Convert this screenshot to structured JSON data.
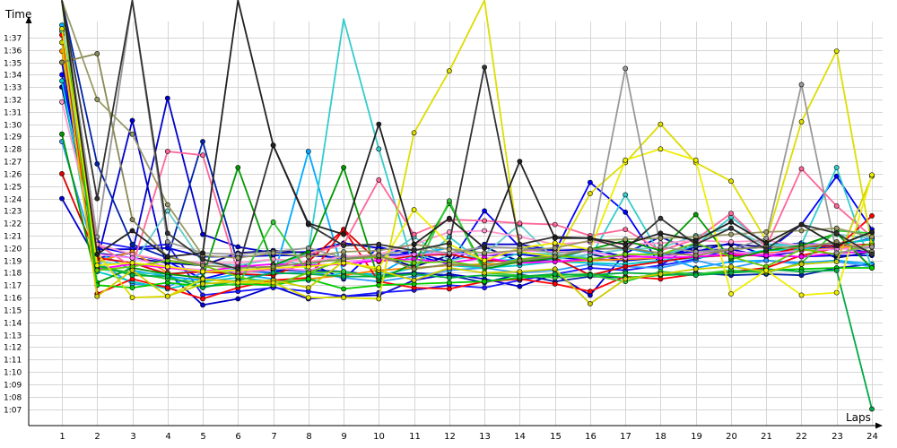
{
  "chart_data": {
    "type": "line",
    "xlabel": "Laps",
    "ylabel": "Time",
    "x": [
      1,
      2,
      3,
      4,
      5,
      6,
      7,
      8,
      9,
      10,
      11,
      12,
      13,
      14,
      15,
      16,
      17,
      18,
      19,
      20,
      21,
      22,
      23,
      24
    ],
    "ylim_seconds": [
      66,
      98
    ],
    "y_tick_labels": [
      "1:07",
      "1:08",
      "1:09",
      "1:10",
      "1:11",
      "1:12",
      "1:13",
      "1:14",
      "1:15",
      "1:16",
      "1:17",
      "1:18",
      "1:19",
      "1:20",
      "1:21",
      "1:22",
      "1:23",
      "1:24",
      "1:25",
      "1:26",
      "1:27",
      "1:28",
      "1:29",
      "1:30",
      "1:31",
      "1:32",
      "1:33",
      "1:34",
      "1:35",
      "1:36",
      "1:37"
    ],
    "y_tick_values": [
      67,
      68,
      69,
      70,
      71,
      72,
      73,
      74,
      75,
      76,
      77,
      78,
      79,
      80,
      81,
      82,
      83,
      84,
      85,
      86,
      87,
      88,
      89,
      90,
      91,
      92,
      93,
      94,
      95,
      96,
      97
    ],
    "grid": true,
    "series": [
      {
        "color": "#0000cc",
        "values": [
          84.0,
          79.0,
          90.3,
          78.0,
          75.4,
          75.9,
          76.9,
          75.9,
          76.1,
          76.2,
          77.4,
          77.9,
          77.5,
          76.9,
          77.9,
          76.2,
          79.6,
          80.9,
          79.7,
          79.6,
          79.3,
          79.8,
          80.1,
          79.6
        ]
      },
      {
        "color": "#0000cc",
        "values": [
          95.0,
          79.2,
          79.6,
          92.1,
          81.1,
          80.1,
          79.6,
          79.7,
          80.4,
          80.0,
          79.6,
          78.9,
          80.3,
          80.3,
          79.8,
          79.9,
          79.3,
          79.3,
          79.8,
          79.9,
          79.3,
          79.8,
          80.3,
          80.7
        ]
      },
      {
        "color": "#00008b",
        "values": [
          93.0,
          79.6,
          79.2,
          78.8,
          78.6,
          79.6,
          79.8,
          79.6,
          79.1,
          79.4,
          78.5,
          79.4,
          80.1,
          78.9,
          79.1,
          79.5,
          79.0,
          79.2,
          80.1,
          80.3,
          80.1,
          80.4,
          79.2,
          79.7
        ]
      },
      {
        "color": "#0000ff",
        "values": [
          94.0,
          80.1,
          79.5,
          78.9,
          77.5,
          78.2,
          78.0,
          78.8,
          77.5,
          80.1,
          79.4,
          78.7,
          83.0,
          80.1,
          79.7,
          85.3,
          82.9,
          78.6,
          80.4,
          79.3,
          79.7,
          81.9,
          85.8,
          81.5
        ]
      },
      {
        "color": "#0000dd",
        "values": [
          100.0,
          79.9,
          79.9,
          80.0,
          79.3,
          79.3,
          79.4,
          79.4,
          79.2,
          79.4,
          79.5,
          79.6,
          79.4,
          79.5,
          79.2,
          79.1,
          79.0,
          79.3,
          79.7,
          80.4,
          79.4,
          79.3,
          79.4,
          79.4
        ]
      },
      {
        "color": "#1a1aff",
        "values": [
          100.0,
          80.5,
          80.0,
          80.3,
          76.2,
          76.5,
          76.8,
          76.5,
          76.1,
          76.4,
          76.6,
          77.0,
          76.8,
          77.4,
          77.9,
          78.4,
          78.2,
          78.6,
          79.1,
          79.9,
          80.1,
          80.4,
          80.2,
          80.8
        ]
      },
      {
        "color": "#0022aa",
        "values": [
          100.0,
          86.8,
          80.3,
          79.2,
          88.6,
          78.7,
          78.2,
          78.2,
          78.1,
          77.8,
          78.0,
          77.8,
          77.2,
          77.9,
          77.3,
          77.7,
          77.6,
          77.8,
          78.0,
          77.8,
          77.9,
          77.8,
          78.4,
          78.7
        ]
      },
      {
        "color": "#00aaff",
        "values": [
          98.0,
          79.7,
          78.2,
          77.7,
          77.4,
          77.9,
          77.5,
          87.8,
          77.9,
          77.9,
          79.5,
          80.0,
          78.9,
          79.1,
          79.1,
          79.9,
          80.0,
          79.4,
          78.4,
          78.9,
          79.0,
          78.8,
          79.0,
          78.7
        ]
      },
      {
        "color": "#3399ff",
        "values": [
          88.6,
          78.9,
          77.1,
          76.9,
          78.0,
          78.3,
          77.9,
          78.1,
          77.6,
          77.3,
          77.7,
          78.2,
          78.4,
          78.0,
          78.2,
          78.7,
          78.5,
          78.4,
          79.0,
          78.4,
          79.0,
          78.7,
          78.9,
          78.5
        ]
      },
      {
        "color": "#33cccc",
        "values": [
          97.5,
          78.3,
          78.0,
          77.9,
          78.2,
          77.9,
          78.5,
          79.6,
          98.5,
          88.0,
          78.4,
          80.9,
          78.7,
          79.6,
          79.5,
          79.2,
          84.3,
          79.4,
          80.2,
          82.5,
          80.3,
          80.3,
          86.5,
          78.4
        ]
      },
      {
        "color": "#66cccc",
        "values": [
          100.0,
          78.9,
          78.6,
          83.0,
          78.8,
          78.6,
          79.1,
          78.6,
          79.4,
          79.0,
          80.9,
          79.0,
          79.5,
          81.9,
          79.1,
          79.5,
          79.9,
          80.0,
          81.0,
          81.6,
          80.2,
          80.2,
          81.1,
          80.8
        ]
      },
      {
        "color": "#00cccc",
        "values": [
          93.5,
          78.1,
          77.3,
          76.7,
          77.3,
          77.6,
          77.3,
          77.4,
          78.0,
          77.8,
          78.4,
          78.6,
          78.4,
          78.6,
          78.9,
          78.8,
          78.7,
          79.0,
          79.2,
          79.5,
          79.8,
          79.9,
          80.3,
          80.7
        ]
      },
      {
        "color": "#ff8c00",
        "values": [
          95.9,
          78.9,
          79.7,
          78.0,
          77.5,
          77.3,
          77.1,
          77.5,
          77.8,
          78.2,
          78.4,
          78.6,
          78.7,
          78.8,
          78.9,
          79.0,
          79.1,
          79.2,
          79.3,
          79.5,
          79.6,
          79.8,
          80.0,
          80.2
        ]
      },
      {
        "color": "#ff0000",
        "values": [
          97.2,
          76.3,
          77.5,
          76.8,
          75.9,
          76.8,
          77.4,
          77.6,
          81.5,
          77.3,
          76.8,
          76.7,
          77.3,
          77.5,
          77.1,
          76.5,
          77.7,
          77.5,
          77.9,
          78.1,
          78.4,
          79.4,
          80.0,
          82.6
        ]
      },
      {
        "color": "#dd0000",
        "values": [
          86.0,
          79.2,
          78.8,
          77.9,
          78.1,
          77.9,
          77.8,
          78.9,
          81.5,
          78.9,
          79.4,
          79.5,
          79.0,
          78.9,
          79.2,
          77.8,
          78.5,
          78.9,
          79.3,
          79.4,
          79.4,
          80.1,
          80.2,
          80.3
        ]
      },
      {
        "color": "#ff6699",
        "values": [
          100.0,
          80.3,
          78.5,
          87.8,
          87.5,
          78.0,
          78.3,
          79.5,
          80.3,
          85.5,
          81.1,
          82.3,
          82.2,
          82.0,
          81.9,
          81.0,
          81.5,
          79.8,
          80.7,
          82.8,
          80.1,
          86.4,
          83.4,
          80.9
        ]
      },
      {
        "color": "#ff99cc",
        "values": [
          91.8,
          80.3,
          79.5,
          79.0,
          78.8,
          78.8,
          79.1,
          78.9,
          79.3,
          79.5,
          80.3,
          81.3,
          81.4,
          80.9,
          80.3,
          80.5,
          80.3,
          80.4,
          80.6,
          80.5,
          80.6,
          80.2,
          80.4,
          80.1
        ]
      },
      {
        "color": "#ff80ff",
        "values": [
          100.0,
          79.5,
          79.2,
          78.5,
          78.2,
          78.1,
          78.4,
          78.2,
          78.9,
          79.1,
          79.5,
          79.6,
          79.4,
          79.8,
          79.7,
          79.7,
          79.2,
          79.3,
          79.6,
          79.7,
          79.5,
          79.8,
          79.9,
          80.1
        ]
      },
      {
        "color": "#ff00ff",
        "values": [
          100.0,
          78.3,
          78.7,
          78.4,
          78.1,
          78.5,
          78.7,
          78.6,
          78.7,
          79.0,
          79.1,
          78.8,
          79.2,
          78.8,
          78.9,
          79.1,
          79.4,
          79.2,
          79.3,
          79.5,
          79.4,
          79.3,
          79.6,
          79.7
        ]
      },
      {
        "color": "#009900",
        "values": [
          89.2,
          77.2,
          78.4,
          77.9,
          77.6,
          86.5,
          78.6,
          79.7,
          86.5,
          77.4,
          78.8,
          83.6,
          78.3,
          78.9,
          79.2,
          79.9,
          80.6,
          79.8,
          82.7,
          79.1,
          79.8,
          80.2,
          81.2,
          78.4
        ]
      },
      {
        "color": "#00cc00",
        "values": [
          100.0,
          77.0,
          76.8,
          77.2,
          76.9,
          77.1,
          77.0,
          77.5,
          76.7,
          77.0,
          77.1,
          77.2,
          77.3,
          77.6,
          77.8,
          77.9,
          77.6,
          77.8,
          77.9,
          78.0,
          78.2,
          78.3,
          78.4,
          78.4
        ]
      },
      {
        "color": "#33cc33",
        "values": [
          100.0,
          78.5,
          78.0,
          77.5,
          77.2,
          77.0,
          82.1,
          78.0,
          78.1,
          77.6,
          77.9,
          83.8,
          78.0,
          77.8,
          77.6,
          77.8,
          77.3,
          78.1,
          77.9,
          78.2,
          78.0,
          78.8,
          81.4,
          81.2
        ]
      },
      {
        "color": "#00aa44",
        "values": [
          100.0,
          78.6,
          77.8,
          77.7,
          76.8,
          77.4,
          78.0,
          77.9,
          77.7,
          77.7,
          77.9,
          77.6,
          77.8,
          77.7,
          77.9,
          77.8,
          78.0,
          77.9,
          77.8,
          78.0,
          78.3,
          78.1,
          78.2,
          67.0
        ]
      },
      {
        "color": "#66cc00",
        "values": [
          100.0,
          78.2,
          78.5,
          79.0,
          78.6,
          77.7,
          77.0,
          78.0,
          79.1,
          79.3,
          78.8,
          78.9,
          78.5,
          79.1,
          79.4,
          79.1,
          79.5,
          79.5,
          80.4,
          79.3,
          78.5,
          79.9,
          79.5,
          80.4
        ]
      },
      {
        "color": "#cccc00",
        "values": [
          96.6,
          76.1,
          78.2,
          76.1,
          77.1,
          77.3,
          77.4,
          76.8,
          78.9,
          78.2,
          77.4,
          78.4,
          78.0,
          78.1,
          78.3,
          75.5,
          77.5,
          77.9,
          78.3,
          78.5,
          78.1,
          78.7,
          78.9,
          85.8
        ]
      },
      {
        "color": "#dddd00",
        "values": [
          97.7,
          79.6,
          76.0,
          76.1,
          77.5,
          77.2,
          77.2,
          76.0,
          76.0,
          75.9,
          89.3,
          94.3,
          100.0,
          79.7,
          79.3,
          84.4,
          86.9,
          90.0,
          86.9,
          85.4,
          80.6,
          90.2,
          95.9,
          80.2
        ]
      },
      {
        "color": "#eeee00",
        "values": [
          100.0,
          78.6,
          78.8,
          78.5,
          78.1,
          78.2,
          78.4,
          78.5,
          78.8,
          78.4,
          83.1,
          80.3,
          79.0,
          80.0,
          80.4,
          79.9,
          87.1,
          88.0,
          87.1,
          76.3,
          78.2,
          76.2,
          76.4,
          85.9
        ]
      },
      {
        "color": "#999999",
        "values": [
          100.0,
          80.9,
          100.0,
          80.5,
          79.6,
          79.5,
          79.7,
          80.0,
          79.2,
          79.4,
          79.9,
          79.6,
          80.1,
          80.0,
          79.6,
          79.8,
          94.5,
          80.1,
          79.7,
          79.9,
          80.8,
          93.2,
          79.6,
          80.1
        ]
      },
      {
        "color": "#888855",
        "values": [
          95.0,
          95.7,
          82.3,
          79.3,
          78.6,
          78.4,
          78.5,
          78.8,
          79.1,
          79.4,
          78.3,
          78.7,
          78.5,
          79.0,
          79.3,
          79.9,
          80.0,
          79.6,
          79.4,
          79.9,
          80.1,
          80.0,
          80.5,
          79.7
        ]
      },
      {
        "color": "#999966",
        "values": [
          100.0,
          92.0,
          89.2,
          83.5,
          79.4,
          79.2,
          79.6,
          79.3,
          79.7,
          79.8,
          80.3,
          79.9,
          79.6,
          79.8,
          80.0,
          80.6,
          80.7,
          80.8,
          80.9,
          81.1,
          81.3,
          81.4,
          81.6,
          80.9
        ]
      },
      {
        "color": "#333333",
        "values": [
          100.0,
          84.0,
          100.0,
          81.2,
          79.1,
          78.3,
          88.3,
          81.9,
          80.2,
          80.3,
          79.8,
          80.4,
          94.6,
          80.3,
          80.9,
          80.8,
          79.9,
          82.4,
          80.3,
          81.6,
          79.9,
          81.9,
          81.2,
          79.5
        ]
      },
      {
        "color": "#222222",
        "values": [
          100.0,
          79.5,
          81.4,
          79.3,
          79.6,
          100.0,
          88.3,
          82.0,
          81.1,
          90.0,
          80.3,
          82.4,
          80.0,
          87.0,
          80.8,
          80.8,
          80.3,
          81.2,
          80.6,
          82.1,
          80.4,
          81.9,
          80.2,
          81.3
        ]
      }
    ]
  }
}
